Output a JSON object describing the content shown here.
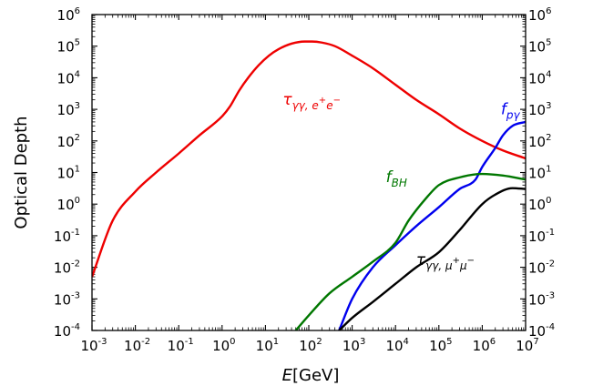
{
  "chart_data": {
    "type": "line",
    "xlabel_italic": "E",
    "xlabel_rest": "[GeV]",
    "ylabel": "Optical Depth",
    "x_scale": "log",
    "y_scale": "log",
    "xlim": [
      0.001,
      10000000
    ],
    "ylim": [
      0.0001,
      1000000
    ],
    "grid": false,
    "legend": "none",
    "x_ticks": [
      {
        "base": "10",
        "exp": "-3",
        "value": 0.001
      },
      {
        "base": "10",
        "exp": "-2",
        "value": 0.01
      },
      {
        "base": "10",
        "exp": "-1",
        "value": 0.1
      },
      {
        "base": "10",
        "exp": "0",
        "value": 1
      },
      {
        "base": "10",
        "exp": "1",
        "value": 10
      },
      {
        "base": "10",
        "exp": "2",
        "value": 100
      },
      {
        "base": "10",
        "exp": "3",
        "value": 1000
      },
      {
        "base": "10",
        "exp": "4",
        "value": 10000
      },
      {
        "base": "10",
        "exp": "5",
        "value": 100000
      },
      {
        "base": "10",
        "exp": "6",
        "value": 1000000
      },
      {
        "base": "10",
        "exp": "7",
        "value": 10000000
      }
    ],
    "y_ticks": [
      {
        "base": "10",
        "exp": "-4",
        "value": 0.0001
      },
      {
        "base": "10",
        "exp": "-3",
        "value": 0.001
      },
      {
        "base": "10",
        "exp": "-2",
        "value": 0.01
      },
      {
        "base": "10",
        "exp": "-1",
        "value": 0.1
      },
      {
        "base": "10",
        "exp": "0",
        "value": 1
      },
      {
        "base": "10",
        "exp": "1",
        "value": 10
      },
      {
        "base": "10",
        "exp": "2",
        "value": 100
      },
      {
        "base": "10",
        "exp": "3",
        "value": 1000
      },
      {
        "base": "10",
        "exp": "4",
        "value": 10000
      },
      {
        "base": "10",
        "exp": "5",
        "value": 100000
      },
      {
        "base": "10",
        "exp": "6",
        "value": 1000000
      }
    ],
    "series": [
      {
        "label_main": "τ",
        "label_sub": "γγ, e",
        "label_sup1": "+",
        "label_mid": "e",
        "label_sup2": "−",
        "color": "#ee0000",
        "label_at": [
          25,
          1400
        ],
        "x": [
          0.001,
          0.003,
          0.01,
          0.03,
          0.1,
          0.3,
          1,
          1.5,
          2.5,
          4,
          7,
          12,
          20,
          40,
          80,
          120,
          200,
          400,
          1000,
          3000,
          10000,
          30000,
          100000,
          300000,
          1000000,
          3000000,
          10000000
        ],
        "y": [
          0.005,
          0.3,
          2.5,
          10,
          40,
          150,
          600,
          1200,
          4000,
          10000,
          25000,
          50000,
          80000,
          120000,
          140000,
          140000,
          130000,
          100000,
          50000,
          20000,
          6000,
          2000,
          700,
          250,
          100,
          50,
          28
        ]
      },
      {
        "label_main": "f",
        "label_sub": "pγ",
        "color": "#0000ee",
        "label_at": [
          2700000,
          700
        ],
        "x": [
          500,
          1000,
          3000,
          10000,
          30000,
          100000,
          300000,
          700000,
          1000000,
          2000000,
          3000000,
          5000000,
          10000000
        ],
        "y": [
          0.0001,
          0.001,
          0.01,
          0.05,
          0.2,
          0.8,
          3,
          6,
          15,
          60,
          150,
          300,
          400
        ]
      },
      {
        "label_main": "f",
        "label_sub": "BH",
        "color": "#007700",
        "label_at": [
          6000,
          5
        ],
        "x": [
          50,
          100,
          300,
          1000,
          3000,
          10000,
          20000,
          50000,
          100000,
          300000,
          1000000,
          3000000,
          10000000
        ],
        "y": [
          0.0001,
          0.0003,
          0.0015,
          0.005,
          0.015,
          0.06,
          0.3,
          1.5,
          4,
          7,
          9,
          8,
          6
        ]
      },
      {
        "label_main": "τ",
        "label_sub": "γγ, μ",
        "label_sup1": "+",
        "label_mid": "μ",
        "label_sup2": "−",
        "color": "#000000",
        "label_at": [
          30000,
          0.012
        ],
        "x": [
          500,
          1000,
          3000,
          10000,
          30000,
          100000,
          300000,
          1000000,
          2000000,
          5000000,
          10000000
        ],
        "y": [
          0.0001,
          0.00025,
          0.0008,
          0.003,
          0.01,
          0.03,
          0.15,
          1,
          2,
          3.2,
          3
        ]
      }
    ]
  }
}
